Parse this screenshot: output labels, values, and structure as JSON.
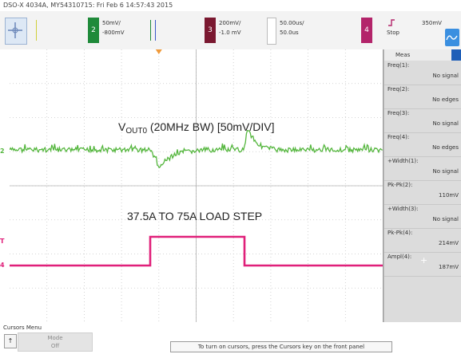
{
  "title_bar": "DSO-X 4034A, MY54310715: Fri Feb 6 14:57:43 2015",
  "toolbar": {
    "channel1": {
      "scale": "",
      "offset": "",
      "color": "#cfcf3a"
    },
    "channel2": {
      "scale": "50mV/",
      "offset": "-800mV",
      "color": "#1f8a3a",
      "number": "2"
    },
    "channel3": {
      "scale": "200mV/",
      "offset": "-1.0 mV",
      "color": "#7a1830",
      "number": "3"
    },
    "timebase": {
      "rate": "50.00us/",
      "delay": "50.0us"
    },
    "channel4": {
      "color": "#b3246a",
      "number": "4"
    },
    "trigger": {
      "level": "350mV",
      "mode": "Stop"
    }
  },
  "waveform_labels": {
    "vout_prefix": "V",
    "vout_sub": "OUT0",
    "vout_rest": " (20MHz BW) [50mV/DIV]",
    "load": "37.5A TO 75A LOAD STEP"
  },
  "left_markers": {
    "ch2": "2",
    "ch4": "4",
    "trig": "T"
  },
  "colors": {
    "green_trace": "#54b63d",
    "pink_trace": "#e0207a",
    "grid": "#c8c8c8",
    "trigger_marker": "#f09a3a"
  },
  "measurements": {
    "header": "Meas",
    "items": [
      {
        "name": "Freq(1):",
        "value": "No signal"
      },
      {
        "name": "Freq(2):",
        "value": "No edges"
      },
      {
        "name": "Freq(3):",
        "value": "No signal"
      },
      {
        "name": "Freq(4):",
        "value": "No edges"
      },
      {
        "name": "+Width(1):",
        "value": "No signal"
      },
      {
        "name": "Pk-Pk(2):",
        "value": "110mV"
      },
      {
        "name": "+Width(3):",
        "value": "No signal"
      },
      {
        "name": "Pk-Pk(4):",
        "value": "214mV"
      },
      {
        "name": "Ampl(4):",
        "value": "187mV"
      }
    ]
  },
  "bottom": {
    "menu_title": "Cursors Menu",
    "mode_label": "Mode",
    "mode_value": "Off",
    "hint": "To turn on cursors, press the Cursors key on the front panel"
  }
}
